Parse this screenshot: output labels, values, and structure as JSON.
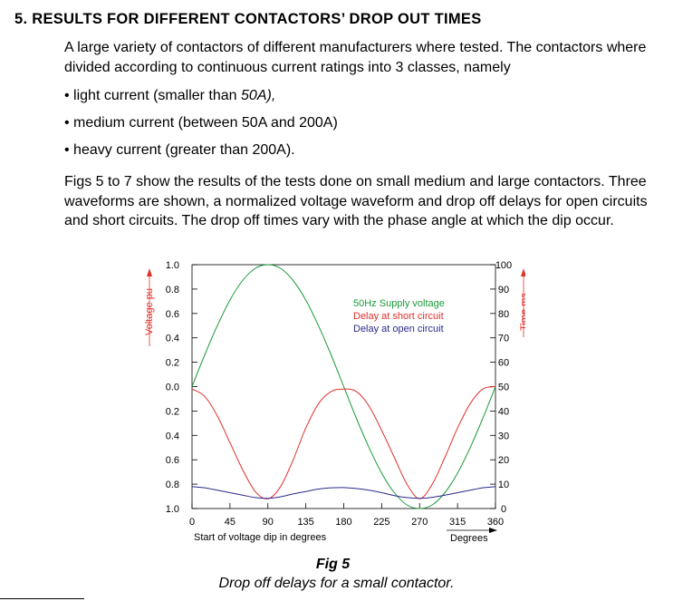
{
  "section": {
    "heading": "5. RESULTS FOR DIFFERENT CONTACTORS’ DROP OUT TIMES"
  },
  "paragraph1": "A large variety of contactors of different manufacturers where tested. The contactors where divided according to continuous current ratings into 3 classes, namely",
  "bullets": [
    {
      "prefix": "• light current (smaller than ",
      "italic": "50A),",
      "suffix": ""
    },
    {
      "prefix": "• medium current (between 50A and 200A)",
      "italic": "",
      "suffix": ""
    },
    {
      "prefix": "• heavy current (greater than 200A).",
      "italic": "",
      "suffix": ""
    }
  ],
  "paragraph2": "Figs 5 to 7 show the results of the tests done on small medium and large contactors. Three waveforms are shown, a normalized voltage waveform and drop off delays for open circuits and short circuits. The drop off times vary with the phase angle at which the dip occur.",
  "figure": {
    "number": "Fig 5",
    "caption": "Drop off delays for a small contactor."
  },
  "chart_data": {
    "type": "line",
    "title": "",
    "xlabel": "Start of voltage dip in degrees",
    "xlabel_right": "Degrees",
    "ylabel_left": "Voltage pu",
    "ylabel_right": "Time ms",
    "x_ticks": [
      "0",
      "45",
      "90",
      "135",
      "180",
      "225",
      "270",
      "315",
      "360"
    ],
    "left_ticks": [
      "1.0",
      "0.8",
      "0.6",
      "0.4",
      "0.2",
      "0.0",
      "0.2",
      "0.4",
      "0.6",
      "0.8",
      "1.0"
    ],
    "right_ticks": [
      "100",
      "90",
      "80",
      "70",
      "60",
      "50",
      "40",
      "30",
      "20",
      "10",
      "0"
    ],
    "xlim": [
      0,
      360
    ],
    "ylim_left": [
      -1.0,
      1.0
    ],
    "ylim_right": [
      0,
      100
    ],
    "legend_placement": "upper-right",
    "colors": {
      "supply": "#1a9a3a",
      "short": "#e0302a",
      "open": "#2a2a8a",
      "axis_label": "#e0302a"
    },
    "x": [
      0,
      15,
      30,
      45,
      60,
      75,
      90,
      105,
      120,
      135,
      150,
      165,
      180,
      195,
      210,
      225,
      240,
      255,
      270,
      285,
      300,
      315,
      330,
      345,
      360
    ],
    "series": [
      {
        "name": "50Hz Supply voltage",
        "axis": "left",
        "values": [
          0.0,
          0.26,
          0.5,
          0.71,
          0.87,
          0.97,
          1.0,
          0.97,
          0.87,
          0.71,
          0.5,
          0.26,
          0.0,
          -0.26,
          -0.5,
          -0.71,
          -0.87,
          -0.97,
          -1.0,
          -0.97,
          -0.87,
          -0.71,
          -0.5,
          -0.26,
          0.0
        ]
      },
      {
        "name": "Delay at short circuit",
        "axis": "right",
        "values": [
          49,
          46,
          38,
          27,
          16,
          7,
          4,
          9,
          20,
          33,
          43,
          48,
          49,
          48,
          42,
          32,
          21,
          10,
          4,
          10,
          21,
          33,
          43,
          49,
          50
        ]
      },
      {
        "name": "Delay at open circuit",
        "axis": "right",
        "values": [
          9,
          8.5,
          7.5,
          6.5,
          5.5,
          4.5,
          4.2,
          4.8,
          6,
          7,
          8,
          8.5,
          8.6,
          8.2,
          7.5,
          6.5,
          5.3,
          4.5,
          4.2,
          4.6,
          5.5,
          6.5,
          7.5,
          8.5,
          9
        ]
      }
    ]
  }
}
